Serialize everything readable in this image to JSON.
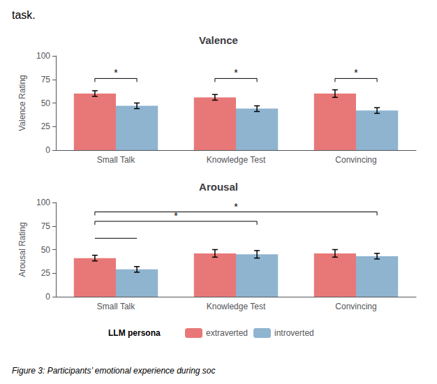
{
  "top_text": "task.",
  "caption": "Figure 3: Participants’ emotional experience during soc",
  "legend_title": "LLM persona",
  "chart_data": [
    {
      "type": "bar",
      "title": "Valence",
      "ylabel": "Valence Rating",
      "categories": [
        "Small Talk",
        "Knowledge Test",
        "Convincing"
      ],
      "series": [
        {
          "name": "extraverted",
          "color": "#E87878",
          "values": [
            60,
            56,
            60
          ],
          "errors": [
            3,
            3,
            4
          ]
        },
        {
          "name": "introverted",
          "color": "#8EB4D0",
          "values": [
            47,
            44,
            42
          ],
          "errors": [
            3,
            3,
            3
          ]
        }
      ],
      "ylim": [
        0,
        100
      ],
      "yticks": [
        0,
        25,
        50,
        75,
        100
      ],
      "grid": false,
      "annotations": [
        {
          "type": "bracket",
          "y": 76,
          "text": "*",
          "from": {
            "category": "Small Talk",
            "series": "extraverted"
          },
          "to": {
            "category": "Small Talk",
            "series": "introverted"
          }
        },
        {
          "type": "bracket",
          "y": 76,
          "text": "*",
          "from": {
            "category": "Knowledge Test",
            "series": "extraverted"
          },
          "to": {
            "category": "Knowledge Test",
            "series": "introverted"
          }
        },
        {
          "type": "bracket",
          "y": 76,
          "text": "*",
          "from": {
            "category": "Convincing",
            "series": "extraverted"
          },
          "to": {
            "category": "Convincing",
            "series": "introverted"
          }
        }
      ]
    },
    {
      "type": "bar",
      "title": "Arousal",
      "ylabel": "Arousal Rating",
      "categories": [
        "Small Talk",
        "Knowledge Test",
        "Convincing"
      ],
      "series": [
        {
          "name": "extraverted",
          "color": "#E87878",
          "values": [
            41,
            46,
            46
          ],
          "errors": [
            3,
            4,
            4
          ]
        },
        {
          "name": "introverted",
          "color": "#8EB4D0",
          "values": [
            29,
            45,
            43
          ],
          "errors": [
            3,
            4,
            3
          ]
        }
      ],
      "ylim": [
        0,
        100
      ],
      "yticks": [
        0,
        25,
        50,
        75,
        100
      ],
      "grid": false,
      "legend": "bottom",
      "annotations": [
        {
          "type": "line",
          "y": 62,
          "from": {
            "category": "Small Talk",
            "series": "extraverted"
          },
          "to": {
            "category": "Small Talk",
            "series": "introverted"
          }
        },
        {
          "type": "bracket",
          "y": 80,
          "text": "*",
          "from": {
            "category": "Small Talk",
            "series": "extraverted"
          },
          "to": {
            "category": "Knowledge Test",
            "series": "introverted"
          }
        },
        {
          "type": "bracket",
          "y": 90,
          "text": "*",
          "from": {
            "category": "Small Talk",
            "series": "extraverted"
          },
          "to": {
            "category": "Convincing",
            "series": "introverted"
          }
        }
      ]
    }
  ]
}
